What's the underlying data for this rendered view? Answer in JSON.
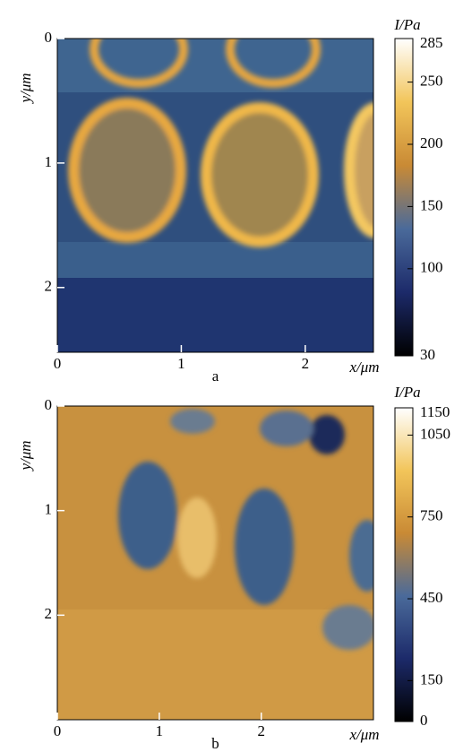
{
  "chart_data": [
    {
      "type": "heatmap",
      "panel_label": "a",
      "x_label": "x/μm",
      "y_label": "y/μm",
      "xlim": [
        0,
        2.55
      ],
      "ylim": [
        0,
        2.52
      ],
      "y_axis_inverted": true,
      "xticks": [
        0,
        1,
        2
      ],
      "yticks": [
        0,
        1,
        2
      ],
      "colorbar": {
        "label": "I/Pa",
        "clim": [
          30,
          285
        ],
        "ticks": [
          30,
          100,
          150,
          200,
          250,
          285
        ],
        "colormap": [
          "#000000",
          "#1c2a6a",
          "#4a6a9a",
          "#c98a35",
          "#f2c55a",
          "#ffffff"
        ]
      }
    },
    {
      "type": "heatmap",
      "panel_label": "b",
      "x_label": "x/μm",
      "y_label": "y/μm",
      "xlim": [
        0,
        3.1
      ],
      "ylim": [
        0,
        3.0
      ],
      "y_axis_inverted": true,
      "xticks": [
        0,
        1,
        2
      ],
      "yticks": [
        0,
        1,
        2
      ],
      "colorbar": {
        "label": "I/Pa",
        "clim": [
          0,
          1150
        ],
        "ticks": [
          0,
          150,
          450,
          750,
          1050,
          1150
        ],
        "colormap": [
          "#000000",
          "#1c2a6a",
          "#4a6a9a",
          "#c98a35",
          "#f2c55a",
          "#ffffff"
        ]
      }
    }
  ]
}
